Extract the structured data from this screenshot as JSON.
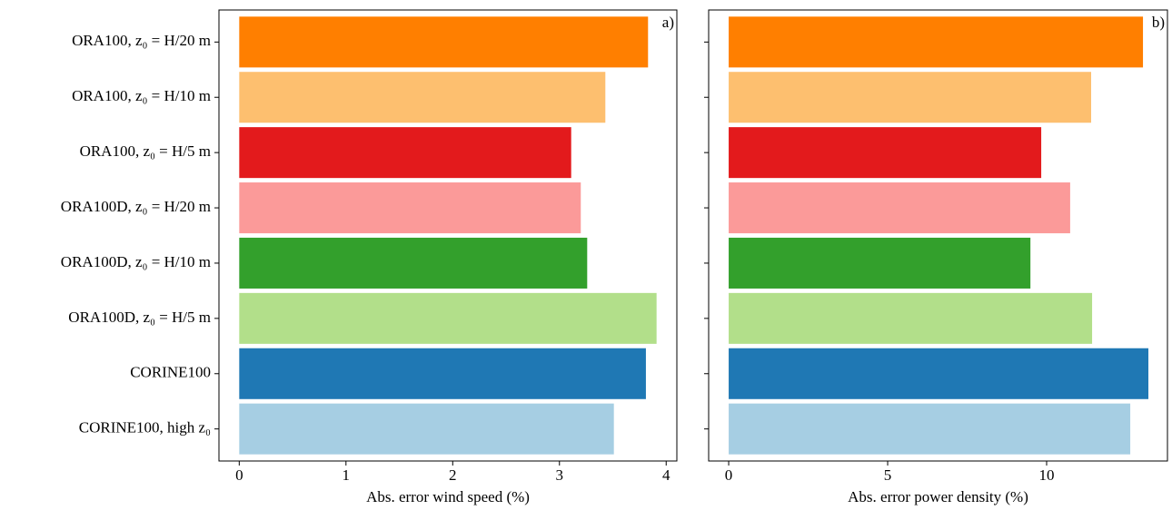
{
  "chart_data": [
    {
      "type": "barh",
      "annotation": "a)",
      "categories": [
        "ORA100, z₀ = H/20 m",
        "ORA100, z₀ = H/10 m",
        "ORA100, z₀ = H/5 m",
        "ORA100D, z₀ = H/20 m",
        "ORA100D, z₀ = H/10 m",
        "ORA100D, z₀ = H/5 m",
        "CORINE100",
        "CORINE100, high z₀"
      ],
      "values": [
        3.83,
        3.43,
        3.11,
        3.2,
        3.26,
        3.91,
        3.81,
        3.51
      ],
      "colors": [
        "#ff7f00",
        "#fdbf6f",
        "#e31a1c",
        "#fb9a99",
        "#33a02c",
        "#b2df8a",
        "#1f78b4",
        "#a6cee3"
      ],
      "xlabel": "Abs. error wind speed (%)",
      "xlim": [
        -0.19,
        4.1
      ],
      "xticks": [
        0,
        1,
        2,
        3,
        4
      ]
    },
    {
      "type": "barh",
      "annotation": "b)",
      "values": [
        13.03,
        11.4,
        9.83,
        10.74,
        9.49,
        11.43,
        13.2,
        12.63
      ],
      "colors": [
        "#ff7f00",
        "#fdbf6f",
        "#e31a1c",
        "#fb9a99",
        "#33a02c",
        "#b2df8a",
        "#1f78b4",
        "#a6cee3"
      ],
      "xlabel": "Abs. error power density (%)",
      "xlim": [
        -0.63,
        13.8
      ],
      "xticks": [
        0,
        5,
        10
      ]
    }
  ]
}
